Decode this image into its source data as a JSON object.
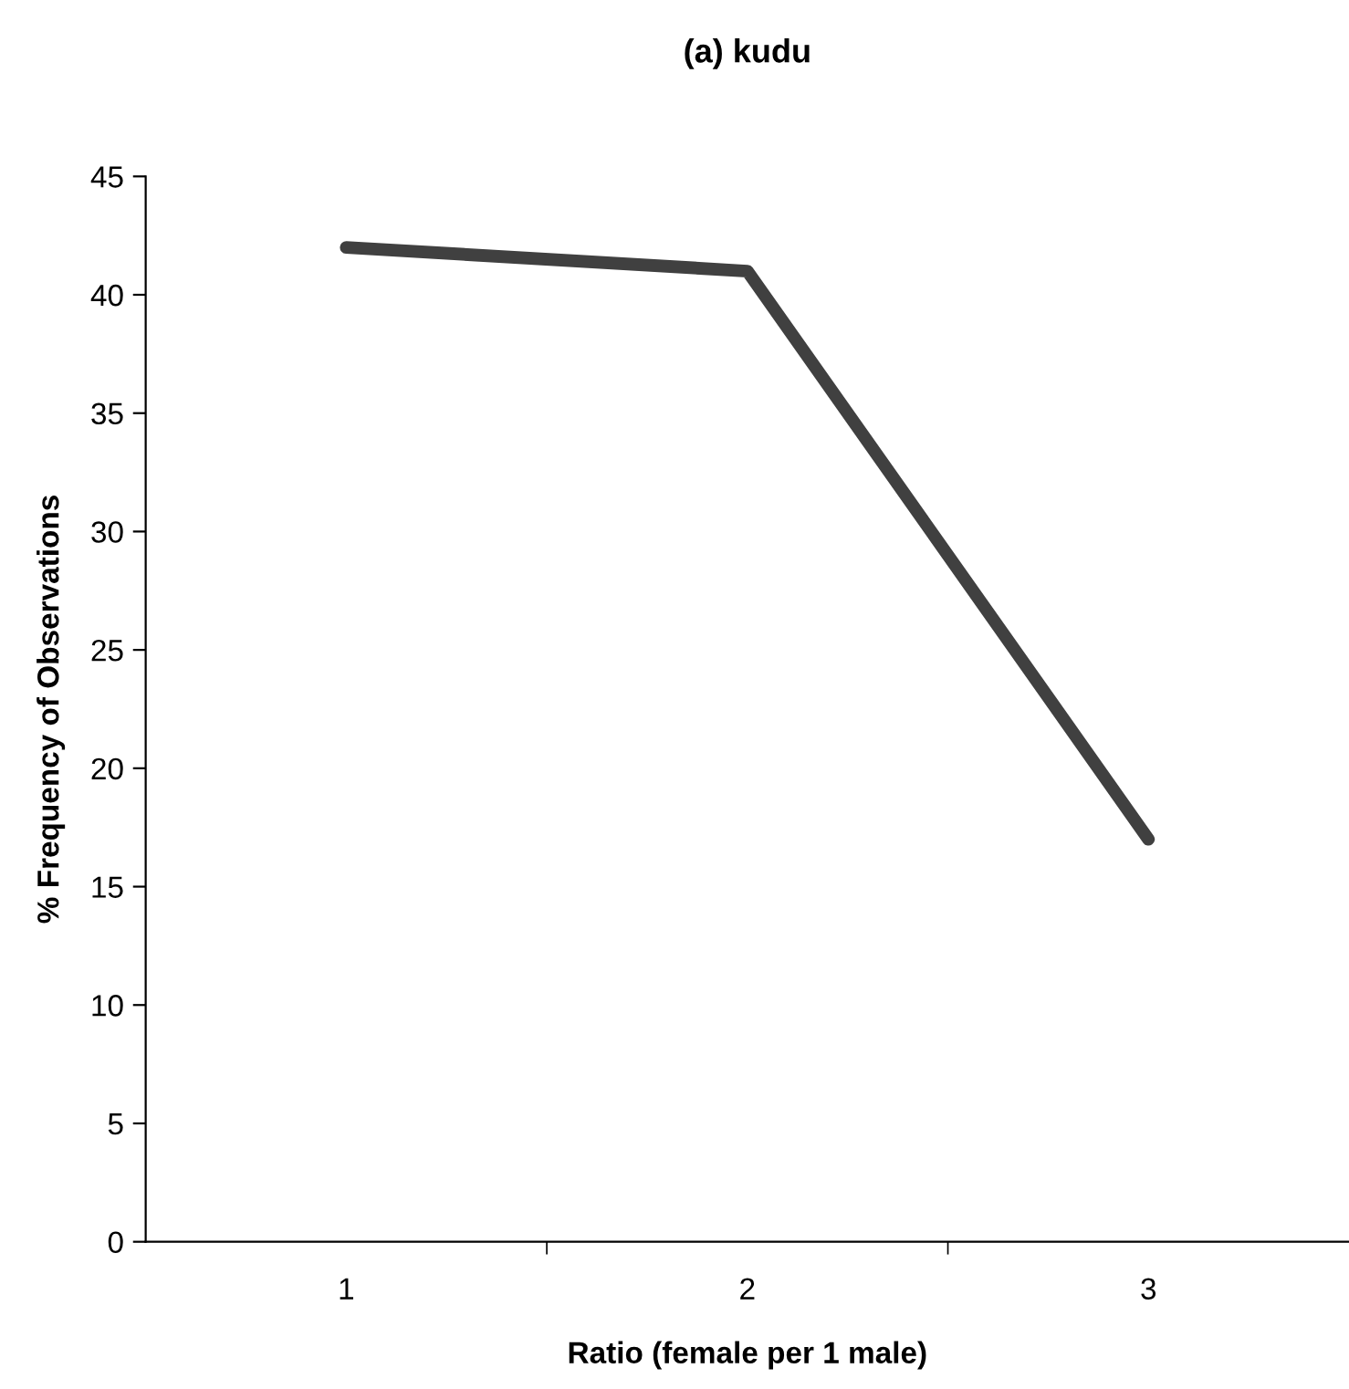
{
  "chart_data": {
    "type": "line",
    "title": "(a) kudu",
    "xlabel": "Ratio (female per 1 male)",
    "ylabel": "% Frequency of Observations",
    "categories": [
      "1",
      "2",
      "3"
    ],
    "series": [
      {
        "color": "#404040",
        "values": [
          42,
          41,
          17
        ]
      }
    ],
    "ylim": [
      0,
      45
    ],
    "yticks": [
      0,
      5,
      10,
      15,
      20,
      25,
      30,
      35,
      40,
      45
    ],
    "grid": false,
    "legend": false,
    "marker": "none",
    "line_style": "solid"
  }
}
